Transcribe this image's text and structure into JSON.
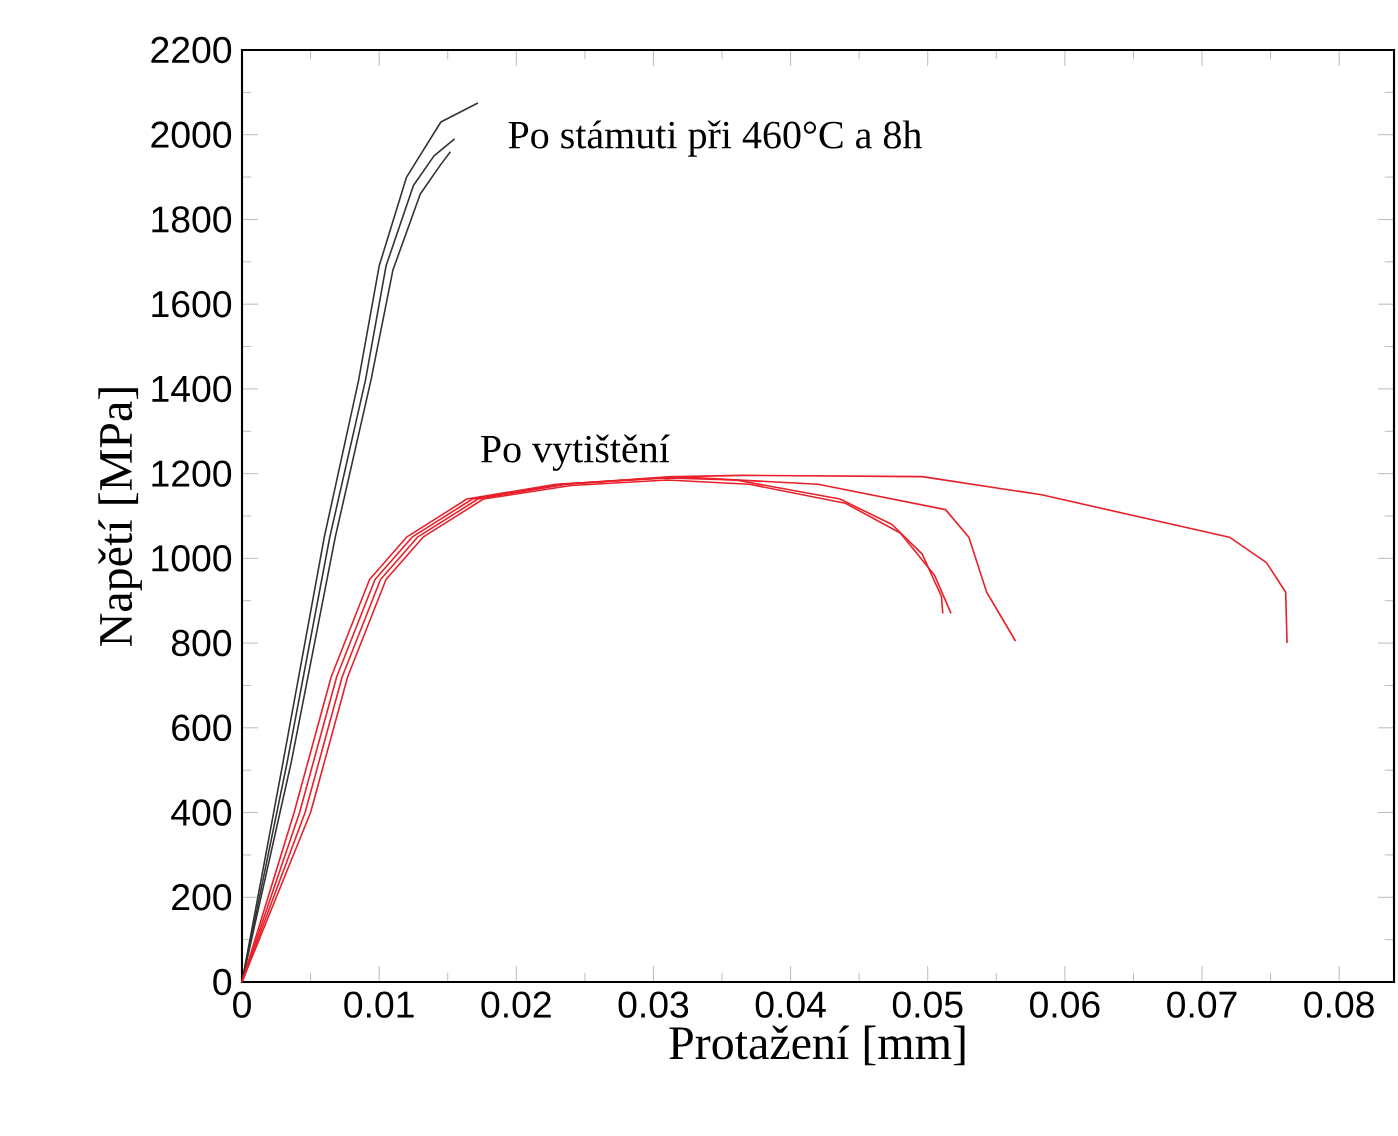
{
  "chart_data": {
    "type": "line",
    "xlabel": "Protažení [mm]",
    "ylabel": "Napětí [MPa]",
    "xlim": [
      0,
      0.084
    ],
    "ylim": [
      0,
      2200
    ],
    "xticks": [
      0,
      0.01,
      0.02,
      0.03,
      0.04,
      0.05,
      0.06,
      0.07,
      0.08
    ],
    "yticks": [
      0,
      200,
      400,
      600,
      800,
      1000,
      1200,
      1400,
      1600,
      1800,
      2000,
      2200
    ],
    "marker": "none",
    "line_style": "solid",
    "annotations": [
      "Po stámuti při 460°C a 8h",
      "Po vytištění"
    ],
    "series": [
      {
        "color": "#333333",
        "x": [
          0,
          0.003,
          0.006,
          0.0085,
          0.01,
          0.012,
          0.0145,
          0.0172
        ],
        "values": [
          0,
          520,
          1050,
          1420,
          1690,
          1900,
          2030,
          2075
        ]
      },
      {
        "color": "#333333",
        "x": [
          0,
          0.0033,
          0.0064,
          0.009,
          0.0105,
          0.0125,
          0.014,
          0.0155
        ],
        "values": [
          0,
          520,
          1050,
          1420,
          1690,
          1880,
          1950,
          1990
        ]
      },
      {
        "color": "#333333",
        "x": [
          0,
          0.0036,
          0.0068,
          0.0094,
          0.011,
          0.013,
          0.0145,
          0.0152
        ],
        "values": [
          0,
          520,
          1050,
          1420,
          1680,
          1860,
          1930,
          1960
        ]
      },
      {
        "color": "#e8202a",
        "x": [
          0,
          0.0038,
          0.0065,
          0.0093,
          0.012,
          0.0164,
          0.0229,
          0.031,
          0.036,
          0.0436,
          0.0474,
          0.0496,
          0.051,
          0.0511
        ],
        "values": [
          0,
          400,
          720,
          950,
          1050,
          1140,
          1175,
          1190,
          1185,
          1140,
          1080,
          1010,
          910,
          870
        ]
      },
      {
        "color": "#e8202a",
        "x": [
          0,
          0.0042,
          0.0069,
          0.0097,
          0.0124,
          0.0168,
          0.0233,
          0.0314,
          0.042,
          0.0513,
          0.053,
          0.0543,
          0.0564
        ],
        "values": [
          0,
          400,
          720,
          950,
          1050,
          1140,
          1175,
          1193,
          1175,
          1115,
          1050,
          920,
          805
        ]
      },
      {
        "color": "#e8202a",
        "x": [
          0,
          0.0046,
          0.0073,
          0.0101,
          0.0128,
          0.0172,
          0.0237,
          0.0318,
          0.0365,
          0.0496,
          0.0583,
          0.072,
          0.0747,
          0.0761,
          0.0762
        ],
        "values": [
          0,
          400,
          720,
          950,
          1050,
          1140,
          1175,
          1193,
          1196,
          1193,
          1150,
          1050,
          990,
          920,
          800
        ]
      },
      {
        "color": "#e8202a",
        "x": [
          0,
          0.005,
          0.0077,
          0.0105,
          0.0132,
          0.0176,
          0.024,
          0.031,
          0.037,
          0.044,
          0.048,
          0.0505,
          0.0517
        ],
        "values": [
          0,
          400,
          720,
          950,
          1050,
          1140,
          1172,
          1185,
          1175,
          1130,
          1060,
          960,
          870
        ]
      }
    ]
  }
}
